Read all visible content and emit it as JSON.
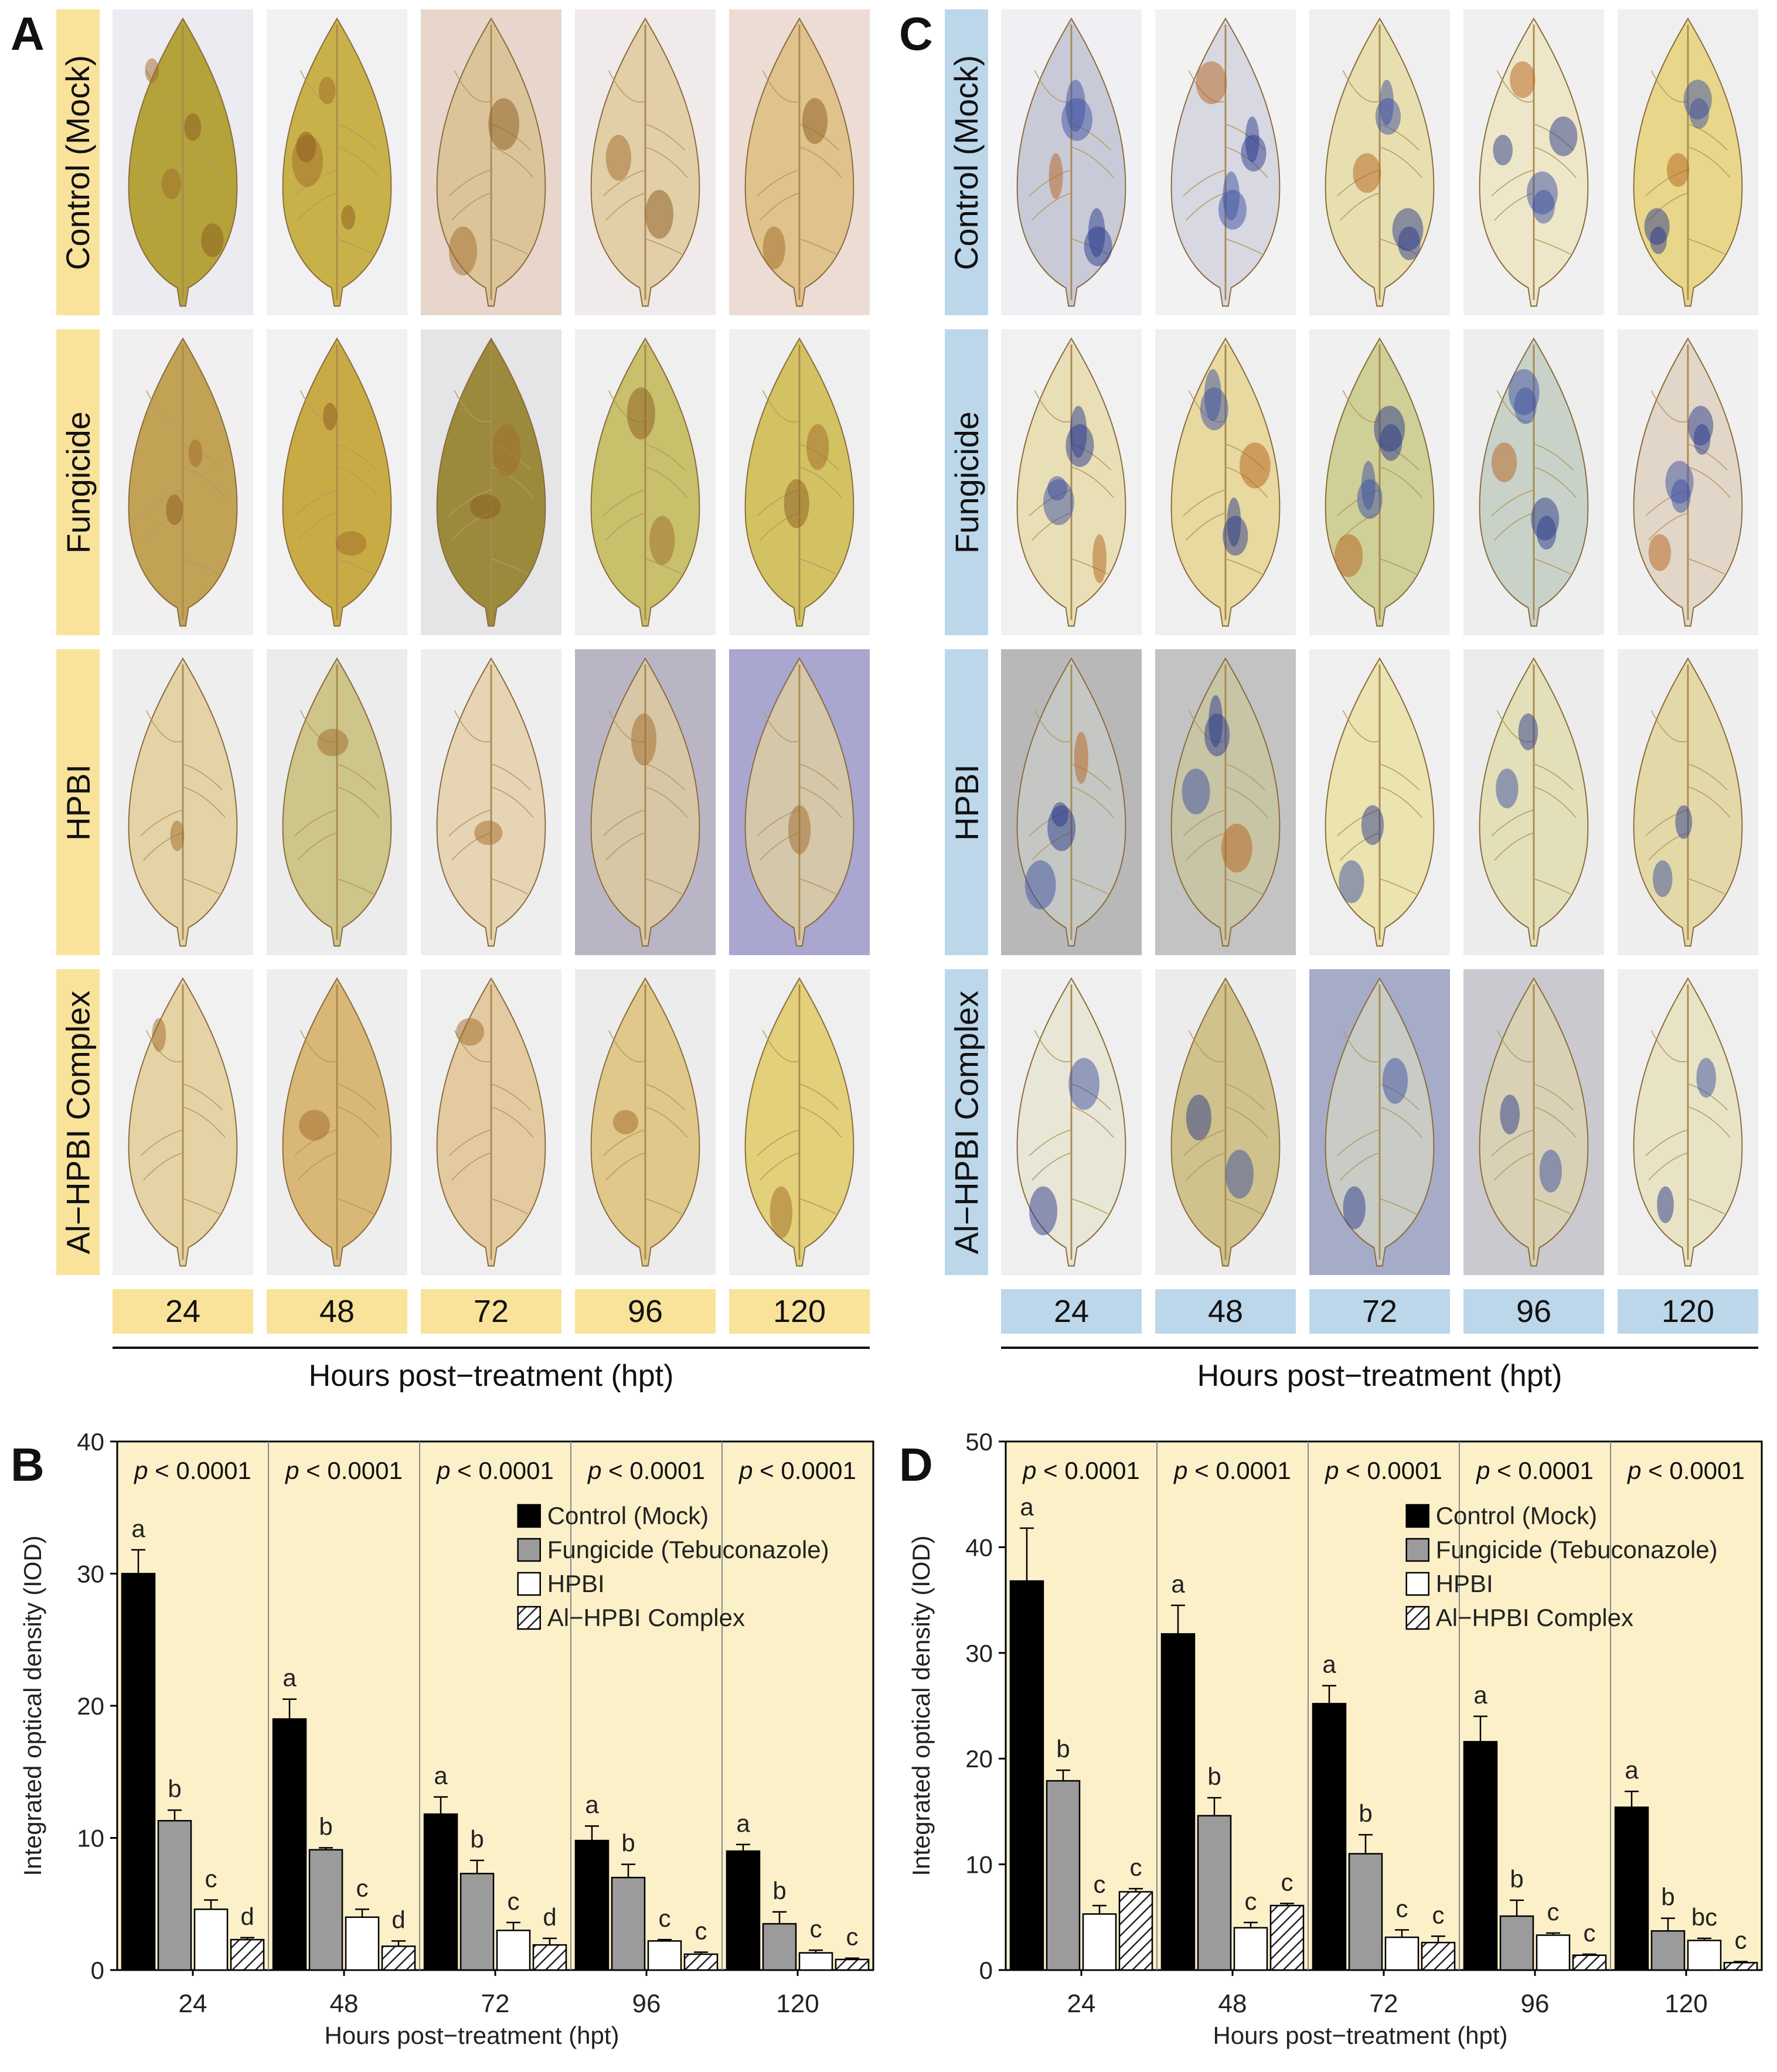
{
  "figure": {
    "panel_letters": {
      "a": "A",
      "b": "B",
      "c": "C",
      "d": "D"
    },
    "rows": [
      "Control (Mock)",
      "Fungicide",
      "HPBI",
      "Al−HPBI Complex"
    ],
    "times": [
      "24",
      "48",
      "72",
      "96",
      "120"
    ],
    "xlabel_photos": "Hours post−treatment (hpt)",
    "colors": {
      "panelA_label": "#f9e29a",
      "panelC_label": "#bcd7ea",
      "chart_bg": "#fcf0c9"
    }
  },
  "chart_data": [
    {
      "id": "B",
      "type": "bar",
      "categories": [
        "24",
        "48",
        "72",
        "96",
        "120"
      ],
      "xlabel": "Hours post−treatment  (hpt)",
      "ylabel": "Integrated optical density (IOD)",
      "ylim": [
        0,
        40
      ],
      "yticks": [
        "0",
        "10",
        "20",
        "30",
        "40"
      ],
      "pvalues": [
        "p < 0.0001",
        "p < 0.0001",
        "p < 0.0001",
        "p < 0.0001",
        "p < 0.0001"
      ],
      "legend": [
        "Control (Mock)",
        "Fungicide (Tebuconazole)",
        "HPBI",
        "Al−HPBI Complex"
      ],
      "legend_position": "top-right",
      "series": [
        {
          "name": "Control (Mock)",
          "values": [
            30,
            19,
            11.8,
            9.8,
            9
          ],
          "errors": [
            1.8,
            1.5,
            1.3,
            1.1,
            0.5
          ],
          "letters": [
            "a",
            "a",
            "a",
            "a",
            "a"
          ]
        },
        {
          "name": "Fungicide (Tebuconazole)",
          "values": [
            11.3,
            9.1,
            7.3,
            7.0,
            3.5
          ],
          "errors": [
            0.8,
            0.15,
            1.0,
            1.0,
            0.9
          ],
          "letters": [
            "b",
            "b",
            "b",
            "b",
            "b"
          ]
        },
        {
          "name": "HPBI",
          "values": [
            4.6,
            4.0,
            3.0,
            2.2,
            1.3
          ],
          "errors": [
            0.7,
            0.6,
            0.6,
            0.1,
            0.2
          ],
          "letters": [
            "c",
            "c",
            "c",
            "c",
            "c"
          ]
        },
        {
          "name": "Al−HPBI Complex",
          "values": [
            2.3,
            1.8,
            1.9,
            1.2,
            0.8
          ],
          "errors": [
            0.15,
            0.4,
            0.5,
            0.15,
            0.1
          ],
          "letters": [
            "d",
            "d",
            "d",
            "c",
            "c"
          ]
        }
      ]
    },
    {
      "id": "D",
      "type": "bar",
      "categories": [
        "24",
        "48",
        "72",
        "96",
        "120"
      ],
      "xlabel": "Hours post−treatment  (hpt)",
      "ylabel": "Integrated optical density (IOD)",
      "ylim": [
        0,
        50
      ],
      "yticks": [
        "0",
        "10",
        "20",
        "30",
        "40",
        "50"
      ],
      "pvalues": [
        "p < 0.0001",
        "p < 0.0001",
        "p < 0.0001",
        "p < 0.0001",
        "p < 0.0001"
      ],
      "legend": [
        "Control (Mock)",
        "Fungicide (Tebuconazole)",
        "HPBI",
        "Al−HPBI Complex"
      ],
      "legend_position": "top-right",
      "series": [
        {
          "name": "Control (Mock)",
          "values": [
            36.8,
            31.8,
            25.2,
            21.6,
            15.4
          ],
          "errors": [
            5,
            2.7,
            1.7,
            2.4,
            1.5
          ],
          "letters": [
            "a",
            "a",
            "a",
            "a",
            "a"
          ]
        },
        {
          "name": "Fungicide (Tebuconazole)",
          "values": [
            17.9,
            14.6,
            11.0,
            5.1,
            3.7
          ],
          "errors": [
            1.0,
            1.7,
            1.8,
            1.5,
            1.2
          ],
          "letters": [
            "b",
            "b",
            "b",
            "b",
            "b"
          ]
        },
        {
          "name": "HPBI",
          "values": [
            5.3,
            4.0,
            3.1,
            3.3,
            2.8
          ],
          "errors": [
            0.8,
            0.5,
            0.7,
            0.2,
            0.2
          ],
          "letters": [
            "c",
            "c",
            "c",
            "c",
            "bc"
          ]
        },
        {
          "name": "Al−HPBI Complex",
          "values": [
            7.4,
            6.1,
            2.6,
            1.4,
            0.7
          ],
          "errors": [
            0.3,
            0.2,
            0.6,
            0.1,
            0.1
          ],
          "letters": [
            "c",
            "c",
            "c",
            "c",
            "c"
          ]
        }
      ]
    }
  ]
}
